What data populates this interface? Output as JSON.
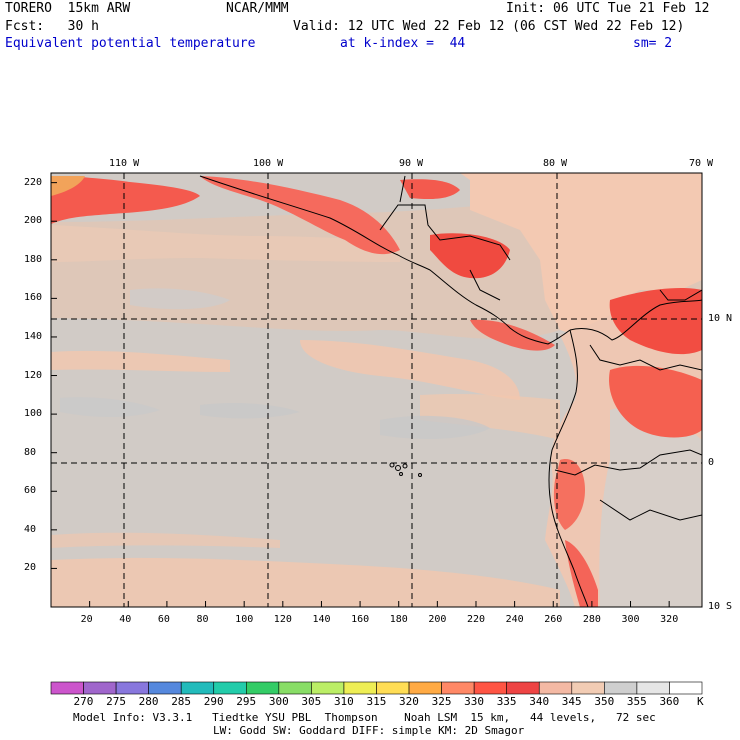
{
  "header": {
    "model": "TORERO  15km ARW",
    "center": "NCAR/MMM",
    "init": "Init: 06 UTC Tue 21 Feb 12",
    "fcst": "Fcst:   30 h",
    "valid": "Valid: 12 UTC Wed 22 Feb 12 (06 CST Wed 22 Feb 12)",
    "field": "Equivalent potential temperature",
    "level": "at k-index =  44",
    "smooth": "sm= 2"
  },
  "map": {
    "top_lon_labels": [
      "110 W",
      "100 W",
      "90 W",
      "80 W",
      "70 W"
    ],
    "right_lat_labels": [
      "10 N",
      "0",
      "10 S"
    ],
    "y_grid_labels": [
      "220",
      "200",
      "180",
      "160",
      "140",
      "120",
      "100",
      "80",
      "60",
      "40",
      "20"
    ],
    "x_grid_labels": [
      "20",
      "40",
      "60",
      "80",
      "100",
      "120",
      "140",
      "160",
      "180",
      "200",
      "220",
      "240",
      "260",
      "280",
      "300",
      "320"
    ]
  },
  "colorbar": {
    "unit": "K",
    "labels": [
      "270",
      "275",
      "280",
      "285",
      "290",
      "295",
      "300",
      "305",
      "310",
      "315",
      "320",
      "325",
      "330",
      "335",
      "340",
      "345",
      "350",
      "355",
      "360"
    ],
    "colors": [
      "#cc55cc",
      "#a066cc",
      "#8877dd",
      "#5588dd",
      "#22bbbb",
      "#22ccaa",
      "#33cc66",
      "#88dd66",
      "#bbee66",
      "#eeee55",
      "#ffdd55",
      "#ffaa44",
      "#ff8866",
      "#ff5544",
      "#ee4444",
      "#f4b9a4",
      "#f2ccb4",
      "#cfcfcf",
      "#e6e6e6",
      "#ffffff"
    ]
  },
  "footer": {
    "line1": "Model Info: V3.3.1   Tiedtke YSU PBL  Thompson    Noah LSM  15 km,   44 levels,   72 sec",
    "line2": "LW: Godd SW: Goddard DIFF: simple KM: 2D Smagor"
  }
}
